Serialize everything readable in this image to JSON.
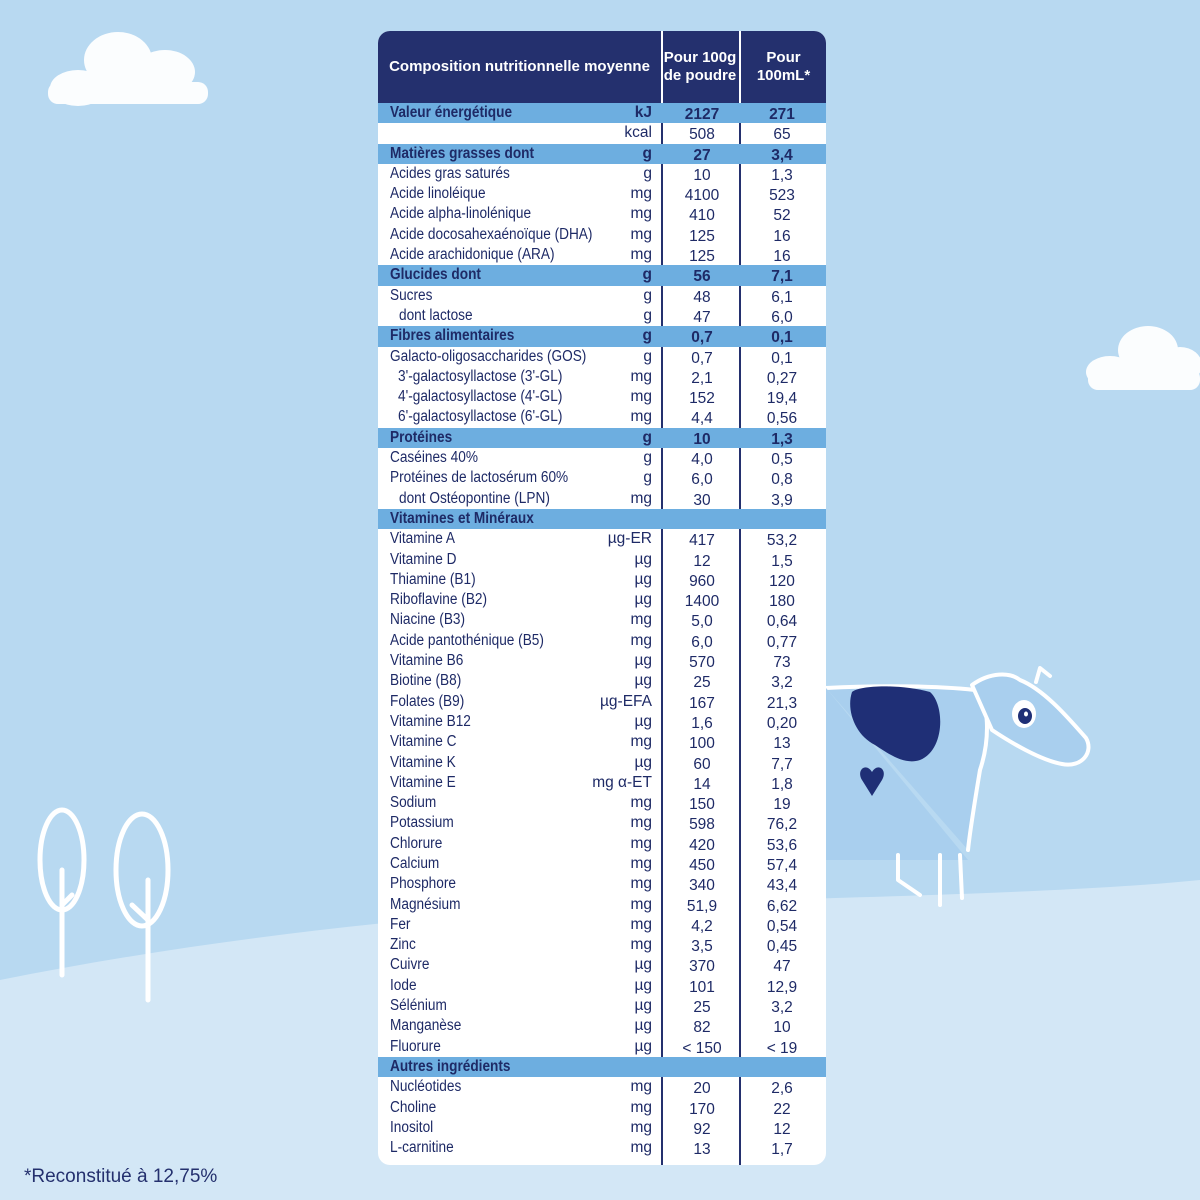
{
  "header": {
    "col1": "Composition nutritionnelle moyenne",
    "col2": "Pour 100g de poudre",
    "col3": "Pour 100mL*"
  },
  "rows": [
    {
      "label": "Valeur énergétique",
      "unit": "kJ",
      "v1": "2127",
      "v2": "271",
      "type": "sec"
    },
    {
      "label": "",
      "unit": "kcal",
      "v1": "508",
      "v2": "65",
      "type": "item"
    },
    {
      "label": "Matières grasses dont",
      "unit": "g",
      "v1": "27",
      "v2": "3,4",
      "type": "sec"
    },
    {
      "label": "Acides gras saturés",
      "unit": "g",
      "v1": "10",
      "v2": "1,3",
      "type": "item"
    },
    {
      "label": "Acide linoléique",
      "unit": "mg",
      "v1": "4100",
      "v2": "523",
      "type": "item"
    },
    {
      "label": "Acide alpha-linolénique",
      "unit": "mg",
      "v1": "410",
      "v2": "52",
      "type": "item"
    },
    {
      "label": "Acide docosahexaénoïque (DHA)",
      "unit": "mg",
      "v1": "125",
      "v2": "16",
      "type": "item"
    },
    {
      "label": "Acide arachidonique (ARA)",
      "unit": "mg",
      "v1": "125",
      "v2": "16",
      "type": "item"
    },
    {
      "label": "Glucides dont",
      "unit": "g",
      "v1": "56",
      "v2": "7,1",
      "type": "sec"
    },
    {
      "label": "Sucres",
      "unit": "g",
      "v1": "48",
      "v2": "6,1",
      "type": "item"
    },
    {
      "label": "dont lactose",
      "unit": "g",
      "v1": "47",
      "v2": "6,0",
      "type": "ind2"
    },
    {
      "label": "Fibres alimentaires",
      "unit": "g",
      "v1": "0,7",
      "v2": "0,1",
      "type": "sec"
    },
    {
      "label": "Galacto-oligosaccharides (GOS)",
      "unit": "g",
      "v1": "0,7",
      "v2": "0,1",
      "type": "item"
    },
    {
      "label": "3'-galactosyllactose (3'-GL)",
      "unit": "mg",
      "v1": "2,1",
      "v2": "0,27",
      "type": "ind1"
    },
    {
      "label": "4'-galactosyllactose (4'-GL)",
      "unit": "mg",
      "v1": "152",
      "v2": "19,4",
      "type": "ind1"
    },
    {
      "label": "6'-galactosyllactose (6'-GL)",
      "unit": "mg",
      "v1": "4,4",
      "v2": "0,56",
      "type": "ind1"
    },
    {
      "label": "Protéines",
      "unit": "g",
      "v1": "10",
      "v2": "1,3",
      "type": "sec"
    },
    {
      "label": "Caséines 40%",
      "unit": "g",
      "v1": "4,0",
      "v2": "0,5",
      "type": "item"
    },
    {
      "label": "Protéines de lactosérum 60%",
      "unit": "g",
      "v1": "6,0",
      "v2": "0,8",
      "type": "item"
    },
    {
      "label": "dont Ostéopontine (LPN)",
      "unit": "mg",
      "v1": "30",
      "v2": "3,9",
      "type": "ind2"
    },
    {
      "label": "Vitamines et Minéraux",
      "unit": "",
      "v1": "",
      "v2": "",
      "type": "sec"
    },
    {
      "label": "Vitamine A",
      "unit": "µg-ER",
      "v1": "417",
      "v2": "53,2",
      "type": "item"
    },
    {
      "label": "Vitamine D",
      "unit": "µg",
      "v1": "12",
      "v2": "1,5",
      "type": "item"
    },
    {
      "label": "Thiamine (B1)",
      "unit": "µg",
      "v1": "960",
      "v2": "120",
      "type": "item"
    },
    {
      "label": "Riboflavine (B2)",
      "unit": "µg",
      "v1": "1400",
      "v2": "180",
      "type": "item"
    },
    {
      "label": "Niacine (B3)",
      "unit": "mg",
      "v1": "5,0",
      "v2": "0,64",
      "type": "item"
    },
    {
      "label": "Acide pantothénique (B5)",
      "unit": "mg",
      "v1": "6,0",
      "v2": "0,77",
      "type": "item"
    },
    {
      "label": "Vitamine B6",
      "unit": "µg",
      "v1": "570",
      "v2": "73",
      "type": "item"
    },
    {
      "label": "Biotine (B8)",
      "unit": "µg",
      "v1": "25",
      "v2": "3,2",
      "type": "item"
    },
    {
      "label": "Folates (B9)",
      "unit": "µg-EFA",
      "v1": "167",
      "v2": "21,3",
      "type": "item"
    },
    {
      "label": "Vitamine B12",
      "unit": "µg",
      "v1": "1,6",
      "v2": "0,20",
      "type": "item"
    },
    {
      "label": "Vitamine C",
      "unit": "mg",
      "v1": "100",
      "v2": "13",
      "type": "item"
    },
    {
      "label": "Vitamine K",
      "unit": "µg",
      "v1": "60",
      "v2": "7,7",
      "type": "item"
    },
    {
      "label": "Vitamine E",
      "unit": "mg α-ET",
      "v1": "14",
      "v2": "1,8",
      "type": "item"
    },
    {
      "label": "Sodium",
      "unit": "mg",
      "v1": "150",
      "v2": "19",
      "type": "item"
    },
    {
      "label": "Potassium",
      "unit": "mg",
      "v1": "598",
      "v2": "76,2",
      "type": "item"
    },
    {
      "label": "Chlorure",
      "unit": "mg",
      "v1": "420",
      "v2": "53,6",
      "type": "item"
    },
    {
      "label": "Calcium",
      "unit": "mg",
      "v1": "450",
      "v2": "57,4",
      "type": "item"
    },
    {
      "label": "Phosphore",
      "unit": "mg",
      "v1": "340",
      "v2": "43,4",
      "type": "item"
    },
    {
      "label": "Magnésium",
      "unit": "mg",
      "v1": "51,9",
      "v2": "6,62",
      "type": "item"
    },
    {
      "label": "Fer",
      "unit": "mg",
      "v1": "4,2",
      "v2": "0,54",
      "type": "item"
    },
    {
      "label": "Zinc",
      "unit": "mg",
      "v1": "3,5",
      "v2": "0,45",
      "type": "item"
    },
    {
      "label": "Cuivre",
      "unit": "µg",
      "v1": "370",
      "v2": "47",
      "type": "item"
    },
    {
      "label": "Iode",
      "unit": "µg",
      "v1": "101",
      "v2": "12,9",
      "type": "item"
    },
    {
      "label": "Sélénium",
      "unit": "µg",
      "v1": "25",
      "v2": "3,2",
      "type": "item"
    },
    {
      "label": "Manganèse",
      "unit": "µg",
      "v1": "82",
      "v2": "10",
      "type": "item"
    },
    {
      "label": "Fluorure",
      "unit": "µg",
      "v1": "< 150",
      "v2": "< 19",
      "type": "item"
    },
    {
      "label": "Autres ingrédients",
      "unit": "",
      "v1": "",
      "v2": "",
      "type": "sec"
    },
    {
      "label": "Nucléotides",
      "unit": "mg",
      "v1": "20",
      "v2": "2,6",
      "type": "item"
    },
    {
      "label": "Choline",
      "unit": "mg",
      "v1": "170",
      "v2": "22",
      "type": "item"
    },
    {
      "label": "Inositol",
      "unit": "mg",
      "v1": "92",
      "v2": "12",
      "type": "item"
    },
    {
      "label": "L-carnitine",
      "unit": "mg",
      "v1": "13",
      "v2": "1,7",
      "type": "item"
    }
  ],
  "footnote": "*Reconstitué à 12,75%",
  "colors": {
    "background": "#b8d9f1",
    "hill": "#cfe4f5",
    "header": "#24306e",
    "section": "#6daee0",
    "text": "#1e2a66"
  },
  "icons": [
    "cloud-icon",
    "tree-icon",
    "cow-illustration"
  ]
}
